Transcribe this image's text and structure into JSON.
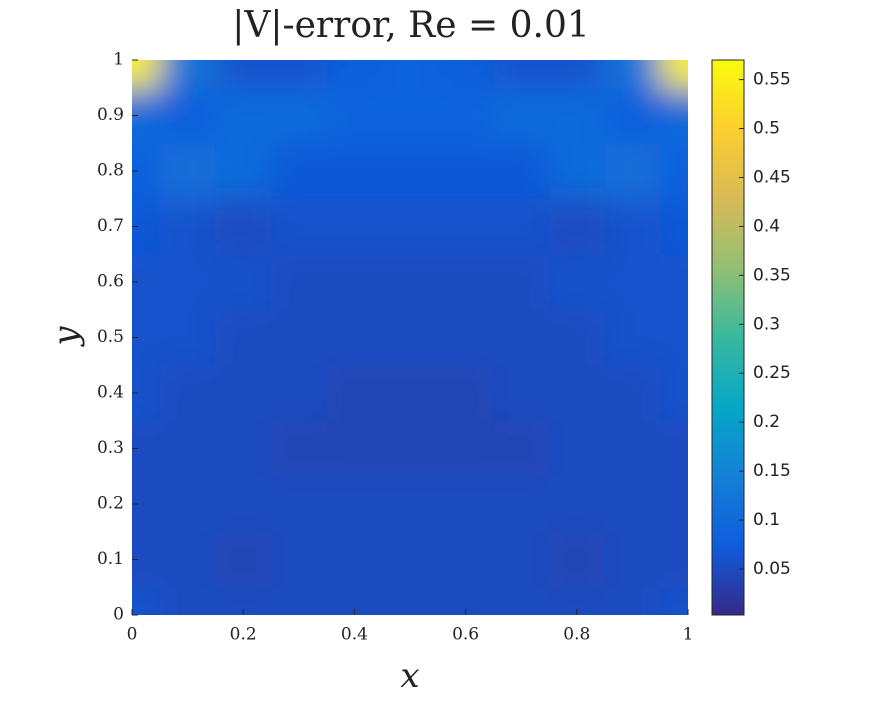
{
  "chart_data": {
    "type": "heatmap",
    "title": "|V|-error, Re = 0.01",
    "xlabel": "x",
    "ylabel": "y",
    "xlim": [
      0,
      1
    ],
    "ylim": [
      0,
      1
    ],
    "xticks": [
      0,
      0.2,
      0.4,
      0.6,
      0.8,
      1
    ],
    "yticks": [
      0,
      0.1,
      0.2,
      0.3,
      0.4,
      0.5,
      0.6,
      0.7,
      0.8,
      0.9,
      1
    ],
    "z": [
      [
        0.06,
        0.05,
        0.05,
        0.05,
        0.05,
        0.05,
        0.05,
        0.05,
        0.05,
        0.05,
        0.06
      ],
      [
        0.05,
        0.05,
        0.04,
        0.05,
        0.05,
        0.05,
        0.05,
        0.05,
        0.04,
        0.05,
        0.05
      ],
      [
        0.05,
        0.05,
        0.05,
        0.05,
        0.05,
        0.05,
        0.05,
        0.05,
        0.05,
        0.05,
        0.05
      ],
      [
        0.05,
        0.05,
        0.05,
        0.04,
        0.04,
        0.04,
        0.04,
        0.04,
        0.05,
        0.05,
        0.05
      ],
      [
        0.06,
        0.05,
        0.05,
        0.05,
        0.04,
        0.04,
        0.04,
        0.05,
        0.05,
        0.05,
        0.06
      ],
      [
        0.06,
        0.06,
        0.05,
        0.05,
        0.05,
        0.05,
        0.05,
        0.05,
        0.05,
        0.06,
        0.06
      ],
      [
        0.06,
        0.06,
        0.06,
        0.05,
        0.05,
        0.05,
        0.05,
        0.05,
        0.06,
        0.06,
        0.06
      ],
      [
        0.07,
        0.06,
        0.05,
        0.06,
        0.06,
        0.06,
        0.06,
        0.06,
        0.05,
        0.06,
        0.07
      ],
      [
        0.08,
        0.11,
        0.1,
        0.07,
        0.07,
        0.07,
        0.07,
        0.07,
        0.1,
        0.11,
        0.08
      ],
      [
        0.1,
        0.08,
        0.1,
        0.1,
        0.09,
        0.09,
        0.09,
        0.1,
        0.1,
        0.08,
        0.1
      ],
      [
        0.55,
        0.12,
        0.06,
        0.06,
        0.08,
        0.09,
        0.08,
        0.06,
        0.06,
        0.12,
        0.55
      ]
    ],
    "clim": [
      0.003,
      0.57
    ],
    "cticks": [
      0.05,
      0.1,
      0.15,
      0.2,
      0.25,
      0.3,
      0.35,
      0.4,
      0.45,
      0.5,
      0.55
    ],
    "colormap": [
      "#352a87",
      "#0f5cdd",
      "#1481d6",
      "#06a7c6",
      "#38b99e",
      "#92bf73",
      "#d9ba56",
      "#fcce2e",
      "#f9fb0e"
    ]
  }
}
